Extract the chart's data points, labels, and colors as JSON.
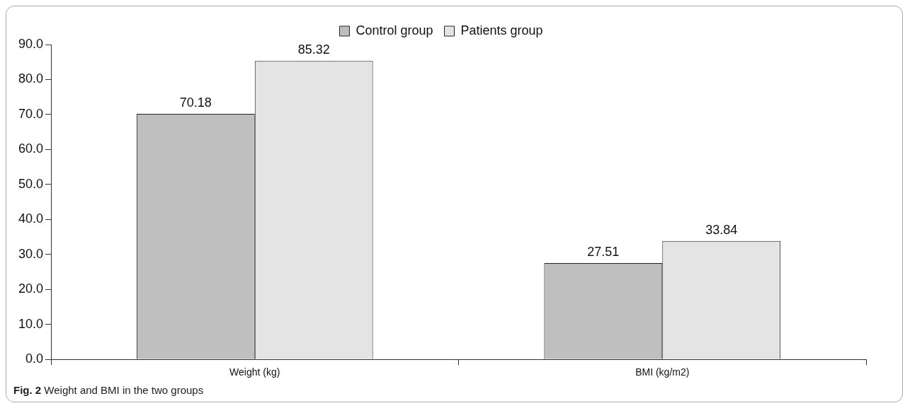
{
  "chart_data": {
    "type": "bar",
    "categories": [
      "Weight (kg)",
      "BMI (kg/m2)"
    ],
    "series": [
      {
        "name": "Control group",
        "color": "#bfbfbf",
        "values": [
          70.18,
          27.51
        ]
      },
      {
        "name": "Patients group",
        "color": "#e4e4e4",
        "values": [
          85.32,
          33.84
        ]
      }
    ],
    "ylim": [
      0,
      90
    ],
    "yticks": [
      {
        "value": 0,
        "label": "0.0"
      },
      {
        "value": 10,
        "label": "10.0"
      },
      {
        "value": 20,
        "label": "20.0"
      },
      {
        "value": 30,
        "label": "30.0"
      },
      {
        "value": 40,
        "label": "40.0"
      },
      {
        "value": 50,
        "label": "50.0"
      },
      {
        "value": 60,
        "label": "60.0"
      },
      {
        "value": 70,
        "label": "70.0"
      },
      {
        "value": 80,
        "label": "80.0"
      },
      {
        "value": 90,
        "label": "90.0"
      }
    ],
    "grid": false,
    "legend": "top",
    "data_labels": true,
    "annotations": [
      "Fig. 2 Weight and BMI in the two groups"
    ]
  }
}
